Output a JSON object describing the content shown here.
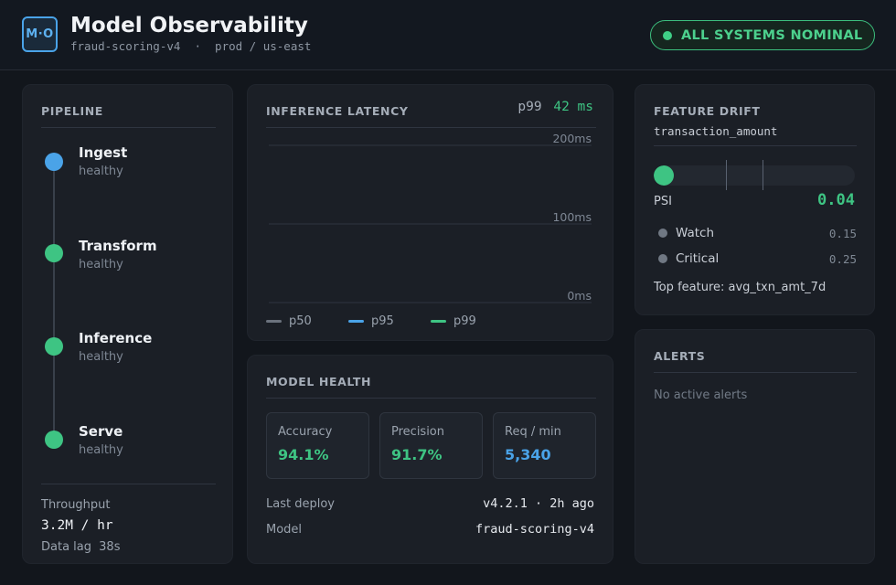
{
  "header": {
    "logo_text": "M·O",
    "title": "Model Observability",
    "subtitle": "fraud-scoring-v4  ·  prod / us-east",
    "status": "ALL SYSTEMS NOMINAL",
    "status_color": "#3fcf86"
  },
  "pipeline": {
    "title": "PIPELINE",
    "stages": [
      {
        "name": "Ingest",
        "status": "healthy",
        "color": "#4aa3e8",
        "active": true
      },
      {
        "name": "Transform",
        "status": "healthy",
        "color": "#3ec483"
      },
      {
        "name": "Inference",
        "status": "healthy",
        "color": "#3ec483"
      },
      {
        "name": "Serve",
        "status": "healthy",
        "color": "#3ec483"
      }
    ],
    "throughput_label": "Throughput",
    "throughput_value": "3.2M / hr",
    "lag_label": "Data lag",
    "lag_value": "38s"
  },
  "latency": {
    "title": "INFERENCE LATENCY",
    "readout_label": "p99",
    "readout_value": "42 ms",
    "chart_data": {
      "type": "line",
      "title": "INFERENCE LATENCY",
      "y_ticks": [
        "200ms",
        "100ms",
        "0ms"
      ],
      "ylim": [
        0,
        200
      ],
      "grid": true,
      "legend_placement": "bottom-left",
      "series": [
        {
          "name": "p50",
          "color": "#6b727d",
          "values": []
        },
        {
          "name": "p95",
          "color": "#4aa3e8",
          "values": []
        },
        {
          "name": "p99",
          "color": "#3ec483",
          "values": []
        }
      ]
    }
  },
  "health": {
    "title": "MODEL HEALTH",
    "metrics": [
      {
        "label": "Accuracy",
        "value": "94.1%",
        "color": "#3ec483"
      },
      {
        "label": "Precision",
        "value": "91.7%",
        "color": "#3ec483"
      },
      {
        "label": "Req / min",
        "value": "5,340",
        "color": "#4aa3e8"
      }
    ],
    "last_deploy_label": "Last deploy",
    "last_deploy_value": "v4.2.1 · 2h ago",
    "model_label": "Model",
    "model_value": "fraud-scoring-v4"
  },
  "drift": {
    "title": "FEATURE DRIFT",
    "feature": "transaction_amount",
    "psi_label": "PSI",
    "psi_value": "0.04",
    "psi_fraction": 0.04,
    "thresholds": [
      {
        "label": "Watch",
        "value": "0.15",
        "fraction": 0.15
      },
      {
        "label": "Critical",
        "value": "0.25",
        "fraction": 0.25
      }
    ],
    "top_feature": "Top feature: avg_txn_amt_7d"
  },
  "alerts": {
    "title": "ALERTS",
    "empty_text": "No active alerts"
  }
}
